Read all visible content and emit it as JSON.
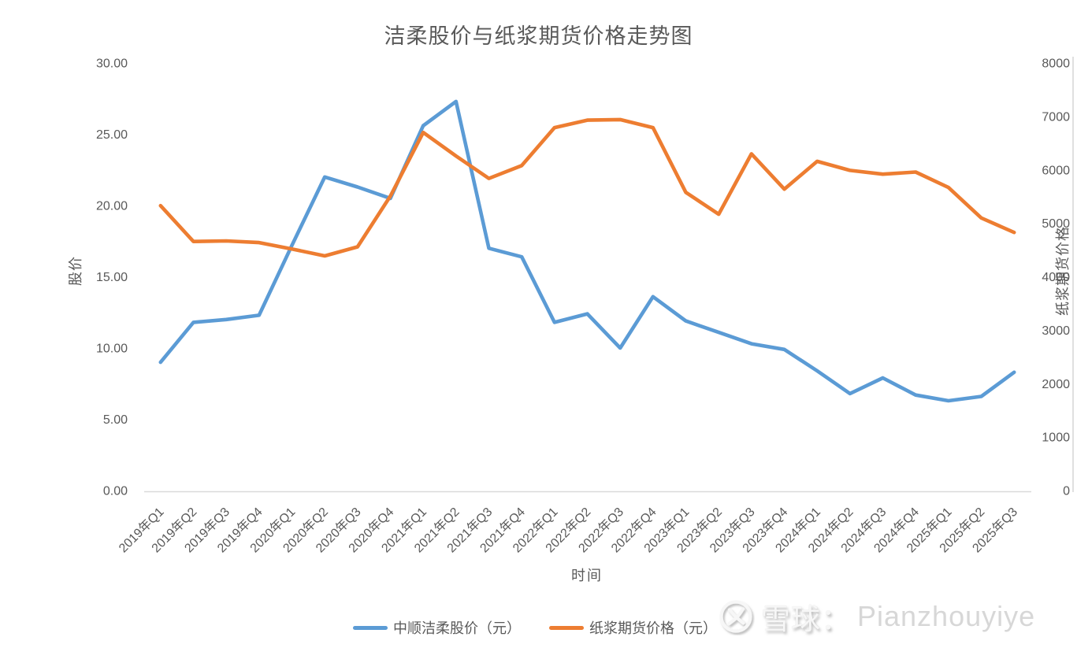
{
  "chart_data": {
    "type": "line",
    "title": "洁柔股价与纸浆期货价格走势图",
    "x_axis": {
      "title": "时间"
    },
    "left_axis": {
      "title": "股价",
      "min": 0,
      "max": 30,
      "step": 5,
      "tick_labels": [
        "0.00",
        "5.00",
        "10.00",
        "15.00",
        "20.00",
        "25.00",
        "30.00"
      ]
    },
    "right_axis": {
      "title": "纸浆期货价格",
      "min": 0,
      "max": 8000,
      "step": 1000,
      "tick_labels": [
        "0",
        "1000",
        "2000",
        "3000",
        "4000",
        "5000",
        "6000",
        "7000",
        "8000"
      ]
    },
    "categories": [
      "2019年Q1",
      "2019年Q2",
      "2019年Q3",
      "2019年Q4",
      "2020年Q1",
      "2020年Q2",
      "2020年Q3",
      "2020年Q4",
      "2021年Q1",
      "2021年Q2",
      "2021年Q3",
      "2021年Q4",
      "2022年Q1",
      "2022年Q2",
      "2022年Q3",
      "2022年Q4",
      "2023年Q1",
      "2023年Q2",
      "2023年Q3",
      "2023年Q4",
      "2024年Q1",
      "2024年Q2",
      "2024年Q3",
      "2024年Q4",
      "2025年Q1",
      "2025年Q2",
      "2025年Q3"
    ],
    "series": [
      {
        "key": "stock-price",
        "name": "中顺洁柔股价（元）",
        "axis": "left",
        "color": "#5B9BD5",
        "values": [
          9.0,
          11.8,
          12.0,
          12.3,
          17.2,
          22.0,
          21.3,
          20.5,
          25.6,
          27.3,
          17.0,
          16.4,
          11.8,
          12.4,
          10.0,
          13.6,
          11.9,
          11.1,
          10.3,
          9.9,
          8.4,
          6.8,
          7.9,
          6.7,
          6.3,
          6.6,
          8.3
        ]
      },
      {
        "key": "pulp-futures",
        "name": "纸浆期货价格（元）",
        "axis": "right",
        "color": "#ED7D31",
        "values": [
          5330,
          4660,
          4670,
          4640,
          4520,
          4390,
          4560,
          5510,
          6700,
          6260,
          5840,
          6080,
          6790,
          6930,
          6940,
          6790,
          5580,
          5170,
          6300,
          5640,
          6160,
          5990,
          5920,
          5960,
          5670,
          5100,
          4830
        ]
      }
    ],
    "legend_position": "bottom",
    "grid": false,
    "axis_line_color": "#D9D9D9",
    "text_color": "#595959"
  },
  "watermark": {
    "brand": "雪球：",
    "user": "Pianzhouyiye",
    "logo": "xueqiu-logo"
  }
}
